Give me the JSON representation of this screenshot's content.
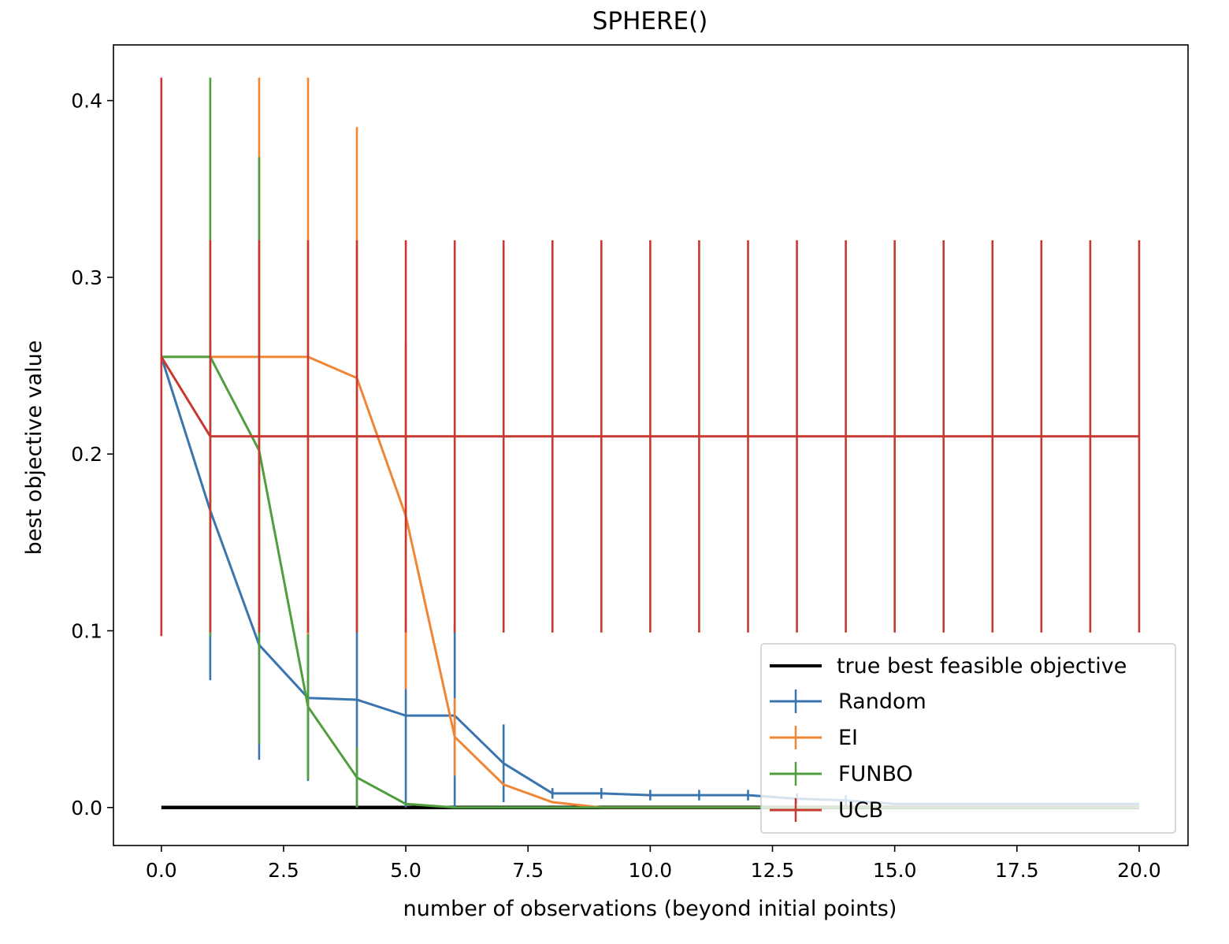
{
  "chart_data": {
    "type": "line",
    "title": "SPHERE()",
    "xlabel": "number of observations (beyond initial points)",
    "ylabel": "best objective value",
    "xlim": [
      -0.98,
      21.0
    ],
    "ylim": [
      -0.0215,
      0.4315
    ],
    "x_ticks": [
      0.0,
      2.5,
      5.0,
      7.5,
      10.0,
      12.5,
      15.0,
      17.5,
      20.0
    ],
    "x_tick_labels": [
      "0.0",
      "2.5",
      "5.0",
      "7.5",
      "10.0",
      "12.5",
      "15.0",
      "17.5",
      "20.0"
    ],
    "y_ticks": [
      0.0,
      0.1,
      0.2,
      0.3,
      0.4
    ],
    "y_tick_labels": [
      "0.0",
      "0.1",
      "0.2",
      "0.3",
      "0.4"
    ],
    "grid": false,
    "legend_position": "lower right",
    "reference_line": {
      "name": "true best feasible objective",
      "color": "#000000",
      "x": [
        0,
        20
      ],
      "y": [
        0.0,
        0.0
      ]
    },
    "series": [
      {
        "name": "Random",
        "color": "#3a75b0",
        "x": [
          0,
          1,
          2,
          3,
          4,
          5,
          6,
          7,
          8,
          9,
          10,
          11,
          12,
          13,
          14,
          15,
          16,
          17,
          18,
          19,
          20
        ],
        "y": [
          0.255,
          0.168,
          0.092,
          0.062,
          0.061,
          0.052,
          0.052,
          0.025,
          0.008,
          0.008,
          0.007,
          0.007,
          0.007,
          0.005,
          0.004,
          0.002,
          0.002,
          0.002,
          0.002,
          0.002,
          0.002
        ],
        "err": [
          0.0,
          0.096,
          0.065,
          0.047,
          0.061,
          0.052,
          0.052,
          0.022,
          0.003,
          0.003,
          0.003,
          0.003,
          0.003,
          0.003,
          0.003,
          0.0,
          0.0,
          0.0,
          0.0,
          0.0,
          0.0
        ]
      },
      {
        "name": "EI",
        "color": "#ef8636",
        "x": [
          0,
          1,
          2,
          3,
          4,
          5,
          6,
          7,
          8,
          9,
          10,
          11,
          12,
          13,
          14,
          15,
          16,
          17,
          18,
          19,
          20
        ],
        "y": [
          0.255,
          0.255,
          0.255,
          0.255,
          0.243,
          0.165,
          0.04,
          0.013,
          0.003,
          0.0,
          0.0,
          0.0,
          0.0,
          0.0,
          0.0,
          0.0,
          0.0,
          0.0,
          0.0,
          0.0,
          0.0
        ],
        "err": [
          0.0,
          0.0,
          0.158,
          0.158,
          0.142,
          0.098,
          0.022,
          0.0,
          0.0,
          0.0,
          0.0,
          0.0,
          0.0,
          0.0,
          0.0,
          0.0,
          0.0,
          0.0,
          0.0,
          0.0,
          0.0
        ]
      },
      {
        "name": "FUNBO",
        "color": "#519e3e",
        "x": [
          0,
          1,
          2,
          3,
          4,
          5,
          6,
          7,
          8,
          9,
          10,
          11,
          12,
          13,
          14,
          15,
          16,
          17,
          18,
          19,
          20
        ],
        "y": [
          0.255,
          0.255,
          0.202,
          0.057,
          0.017,
          0.002,
          0.0,
          0.0,
          0.0,
          0.0,
          0.0,
          0.0,
          0.0,
          0.0,
          0.0,
          0.0,
          0.0,
          0.0,
          0.0,
          0.0,
          0.0
        ],
        "err": [
          0.0,
          0.158,
          0.166,
          0.041,
          0.017,
          0.0,
          0.0,
          0.0,
          0.0,
          0.0,
          0.0,
          0.0,
          0.0,
          0.0,
          0.0,
          0.0,
          0.0,
          0.0,
          0.0,
          0.0,
          0.0
        ]
      },
      {
        "name": "UCB",
        "color": "#c53932",
        "x": [
          0,
          1,
          2,
          3,
          4,
          5,
          6,
          7,
          8,
          9,
          10,
          11,
          12,
          13,
          14,
          15,
          16,
          17,
          18,
          19,
          20
        ],
        "y": [
          0.255,
          0.21,
          0.21,
          0.21,
          0.21,
          0.21,
          0.21,
          0.21,
          0.21,
          0.21,
          0.21,
          0.21,
          0.21,
          0.21,
          0.21,
          0.21,
          0.21,
          0.21,
          0.21,
          0.21,
          0.21
        ],
        "err": [
          0.158,
          0.111,
          0.111,
          0.111,
          0.111,
          0.111,
          0.111,
          0.111,
          0.111,
          0.111,
          0.111,
          0.111,
          0.111,
          0.111,
          0.111,
          0.111,
          0.111,
          0.111,
          0.111,
          0.111,
          0.111
        ]
      }
    ]
  }
}
